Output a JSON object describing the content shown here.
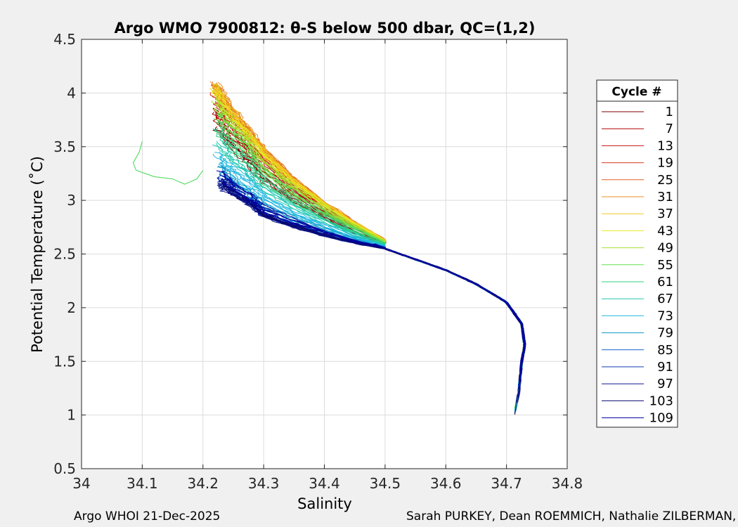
{
  "chart_data": {
    "type": "line",
    "title": "Argo WMO 7900812: θ-S below 500 dbar,  QC=(1,2)",
    "xlabel": "Salinity",
    "ylabel": "Potential Temperature (˚C)",
    "xlim": [
      34.0,
      34.8
    ],
    "ylim": [
      0.5,
      4.5
    ],
    "xticks": [
      "34",
      "34.1",
      "34.2",
      "34.3",
      "34.4",
      "34.5",
      "34.6",
      "34.7",
      "34.8"
    ],
    "yticks": [
      "0.5",
      "1",
      "1.5",
      "2",
      "2.5",
      "3",
      "3.5",
      "4",
      "4.5"
    ],
    "grid": true,
    "legend": {
      "title": "Cycle #",
      "placement": "right",
      "entries": [
        "1",
        "7",
        "13",
        "19",
        "25",
        "31",
        "37",
        "43",
        "49",
        "55",
        "61",
        "67",
        "73",
        "79",
        "85",
        "91",
        "97",
        "103",
        "109"
      ],
      "colors": [
        "#800000",
        "#b00000",
        "#c81010",
        "#d83820",
        "#e06020",
        "#e89020",
        "#f0c820",
        "#e8e820",
        "#a8e030",
        "#60e050",
        "#30d080",
        "#20c8b0",
        "#20b8e0",
        "#1098c8",
        "#1060d0",
        "#1038b0",
        "#101890",
        "#080870",
        "#0000a0"
      ]
    },
    "series_shape": {
      "deep_branch": [
        [
          34.71,
          0.93
        ],
        [
          34.72,
          1.2
        ],
        [
          34.725,
          1.5
        ],
        [
          34.73,
          1.65
        ],
        [
          34.725,
          1.85
        ],
        [
          34.7,
          2.05
        ],
        [
          34.65,
          2.22
        ],
        [
          34.6,
          2.35
        ],
        [
          34.55,
          2.45
        ],
        [
          34.5,
          2.55
        ],
        [
          34.45,
          2.66
        ],
        [
          34.4,
          2.78
        ],
        [
          34.35,
          2.92
        ],
        [
          34.3,
          3.08
        ]
      ],
      "upper_warm_branch": [
        [
          34.5,
          2.63
        ],
        [
          34.45,
          2.8
        ],
        [
          34.4,
          2.98
        ],
        [
          34.35,
          3.2
        ],
        [
          34.3,
          3.48
        ],
        [
          34.27,
          3.7
        ],
        [
          34.24,
          3.9
        ],
        [
          34.22,
          4.1
        ]
      ],
      "upper_cool_branch": [
        [
          34.5,
          2.55
        ],
        [
          34.45,
          2.6
        ],
        [
          34.4,
          2.67
        ],
        [
          34.35,
          2.75
        ],
        [
          34.3,
          2.85
        ],
        [
          34.28,
          2.95
        ],
        [
          34.25,
          3.05
        ],
        [
          34.23,
          3.15
        ]
      ],
      "outlier_trace": [
        [
          34.1,
          3.55
        ],
        [
          34.095,
          3.45
        ],
        [
          34.085,
          3.35
        ],
        [
          34.09,
          3.28
        ],
        [
          34.12,
          3.22
        ],
        [
          34.15,
          3.2
        ],
        [
          34.17,
          3.15
        ],
        [
          34.19,
          3.2
        ],
        [
          34.2,
          3.28
        ]
      ]
    }
  },
  "footer": {
    "left": "Argo WHOI 21-Dec-2025",
    "right": "Sarah PURKEY, Dean ROEMMICH, Nathalie ZILBERMAN, Jo"
  }
}
